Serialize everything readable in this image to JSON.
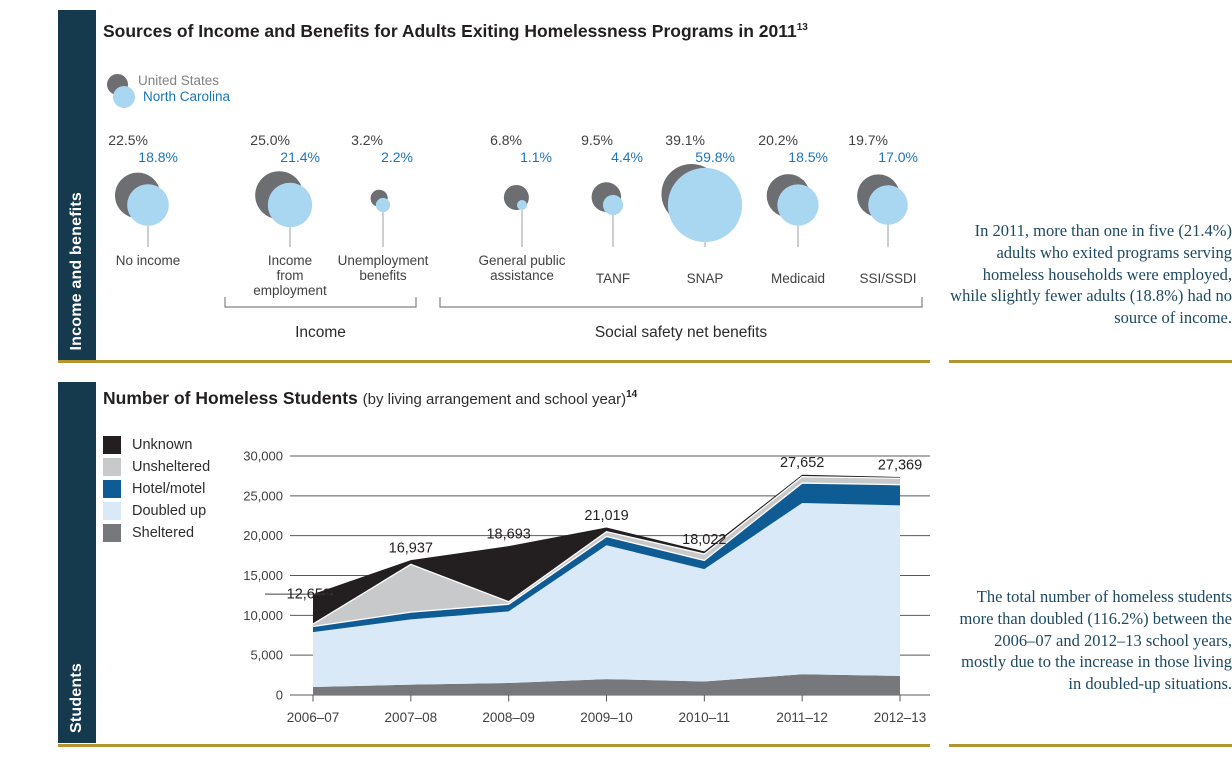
{
  "page": {
    "background": "#ffffff",
    "sidebar_color": "#15394d",
    "accent_line_color": "#b2952e",
    "serif_text_color": "#1d4961"
  },
  "panel_income": {
    "sidebar_label": "Income and benefits",
    "title": "Sources of Income and Benefits for Adults Exiting Homelessness Programs in 2011",
    "title_superscript": "13",
    "annotation": "In 2011, more than one in five (21.4%) adults who exited programs serving homeless households were employed, while slightly fewer adults (18.8%) had no source of income."
  },
  "panel_students": {
    "sidebar_label": "Students",
    "title": "Number of Homeless Students",
    "title_note": "(by living arrangement and school year)",
    "title_superscript": "14",
    "annotation": "The total number of homeless students more than doubled (116.2%) between the 2006–07 and 2012–13 school years, mostly due to the increase in those living in doubled-up situations."
  },
  "chart_data": [
    {
      "type": "scatter",
      "variant": "paired-bubble-comparison",
      "title": "Sources of Income and Benefits for Adults Exiting Homelessness Programs in 2011",
      "value_suffix": "%",
      "categories": [
        "No income",
        "Income from employment",
        "Unemployment benefits",
        "General public assistance",
        "TANF",
        "SNAP",
        "Medicaid",
        "SSI/SSDI"
      ],
      "category_lines": [
        [
          "No income"
        ],
        [
          "Income",
          "from",
          "employment"
        ],
        [
          "Unemployment",
          "benefits"
        ],
        [
          "General public",
          "assistance"
        ],
        [
          "TANF"
        ],
        [
          "SNAP"
        ],
        [
          "Medicaid"
        ],
        [
          "SSI/SSDI"
        ]
      ],
      "series": [
        {
          "name": "United States",
          "color": "#6d6e71",
          "label_color": "#414042",
          "values": [
            22.5,
            25.0,
            3.2,
            6.8,
            9.5,
            39.1,
            20.2,
            19.7
          ],
          "value_labels": [
            "22.5%",
            "25.0%",
            "3.2%",
            "6.8%",
            "9.5%",
            "39.1%",
            "20.2%",
            "19.7%"
          ]
        },
        {
          "name": "North Carolina",
          "color": "#a9d6f0",
          "label_color": "#1c75bc",
          "values": [
            18.8,
            21.4,
            2.2,
            1.1,
            4.4,
            59.8,
            18.5,
            17.0
          ],
          "value_labels": [
            "18.8%",
            "21.4%",
            "2.2%",
            "1.1%",
            "4.4%",
            "59.8%",
            "18.5%",
            "17.0%"
          ]
        }
      ],
      "groups": [
        {
          "label": "Income",
          "from": 1,
          "to": 2
        },
        {
          "label": "Social safety net benefits",
          "from": 3,
          "to": 7
        }
      ],
      "legend_position": "top-left"
    },
    {
      "type": "area",
      "stacked": true,
      "title": "Number of Homeless Students",
      "subtitle": "(by living arrangement and school year)",
      "categories": [
        "2006–07",
        "2007–08",
        "2008–09",
        "2009–10",
        "2010–11",
        "2011–12",
        "2012–13"
      ],
      "series": [
        {
          "name": "Sheltered",
          "color": "#77787b",
          "values": [
            1000,
            1300,
            1500,
            2000,
            1700,
            2600,
            2400
          ]
        },
        {
          "name": "Doubled up",
          "color": "#d9e9f7",
          "values": [
            6900,
            8200,
            9000,
            16800,
            14100,
            21500,
            21400
          ]
        },
        {
          "name": "Hotel/motel",
          "color": "#0f5b93",
          "values": [
            700,
            900,
            900,
            1100,
            1100,
            2500,
            2600
          ]
        },
        {
          "name": "Unsheltered",
          "color": "#c8c9cb",
          "values": [
            300,
            6000,
            300,
            600,
            800,
            800,
            800
          ]
        },
        {
          "name": "Unknown",
          "color": "#231f20",
          "values": [
            3759,
            537,
            6993,
            519,
            322,
            252,
            169
          ]
        }
      ],
      "series_values_estimated_from_plot": true,
      "totals": [
        12659,
        16937,
        18693,
        21019,
        18022,
        27652,
        27369
      ],
      "total_labels": [
        "12,659",
        "16,937",
        "18,693",
        "21,019",
        "18,022",
        "27,652",
        "27,369"
      ],
      "ylim": [
        0,
        30000
      ],
      "ytick_values": [
        0,
        5000,
        10000,
        15000,
        20000,
        25000,
        30000
      ],
      "ytick_labels": [
        "0",
        "5,000",
        "10,000",
        "15,000",
        "20,000",
        "25,000",
        "30,000"
      ],
      "grid": true,
      "legend": [
        {
          "label": "Unknown",
          "color": "#231f20"
        },
        {
          "label": "Unsheltered",
          "color": "#c8c9cb"
        },
        {
          "label": "Hotel/motel",
          "color": "#0f5b93"
        },
        {
          "label": "Doubled up",
          "color": "#d9e9f7"
        },
        {
          "label": "Sheltered",
          "color": "#77787b"
        }
      ],
      "legend_position": "left"
    }
  ]
}
